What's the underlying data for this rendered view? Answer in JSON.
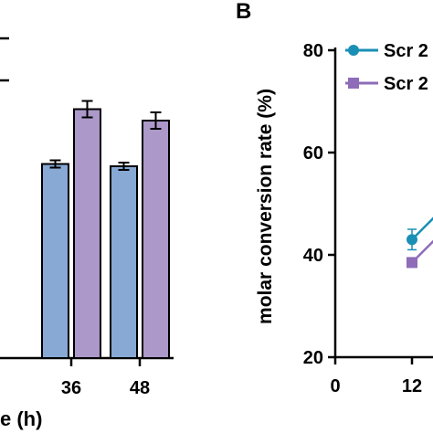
{
  "chart_data": [
    {
      "type": "bar",
      "panel": "",
      "categories": [
        "36",
        "48"
      ],
      "series": [
        {
          "values": [
            62.5,
            62.0
          ],
          "errors": [
            0.8,
            0.8
          ],
          "color": "#87a9d4"
        },
        {
          "values": [
            74.5,
            72.0
          ],
          "errors": [
            1.8,
            1.8
          ],
          "color": "#ac98c9"
        }
      ],
      "xlabel": "e (h)",
      "ylim": [
        20,
        90
      ],
      "grid": false
    },
    {
      "type": "line",
      "panel": "B",
      "ylabel": "molar conversion rate (%)",
      "x_ticks": [
        "0",
        "12"
      ],
      "y_ticks": [
        "20",
        "40",
        "60",
        "80"
      ],
      "ylim": [
        20,
        80
      ],
      "xlim": [
        0,
        20
      ],
      "series": [
        {
          "name": "Scr 2",
          "marker": "circle",
          "color": "#1a8fb5",
          "x": [
            12
          ],
          "y": [
            43
          ],
          "errors": [
            2
          ]
        },
        {
          "name": "Scr 2",
          "marker": "square",
          "color": "#8e6cb8",
          "x": [
            12
          ],
          "y": [
            38.5
          ],
          "errors": [
            0
          ]
        }
      ],
      "grid": false
    }
  ]
}
